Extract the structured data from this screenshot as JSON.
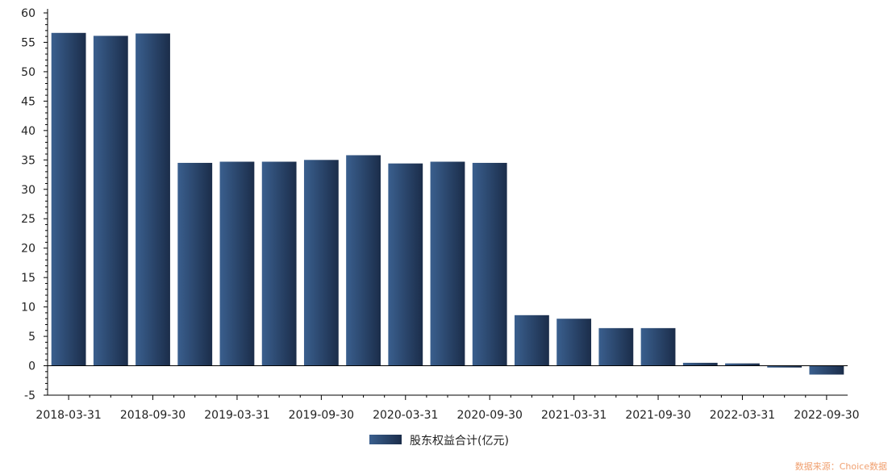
{
  "chart_data": {
    "type": "bar",
    "categories": [
      "2018-03-31",
      "2018-06-30",
      "2018-09-30",
      "2018-12-31",
      "2019-03-31",
      "2019-06-30",
      "2019-09-30",
      "2019-12-31",
      "2020-03-31",
      "2020-06-30",
      "2020-09-30",
      "2020-12-31",
      "2021-03-31",
      "2021-06-30",
      "2021-09-30",
      "2021-12-31",
      "2022-03-31",
      "2022-06-30",
      "2022-09-30"
    ],
    "x_tick_labels": [
      "2018-03-31",
      "2018-09-30",
      "2019-03-31",
      "2019-09-30",
      "2020-03-31",
      "2020-09-30",
      "2021-03-31",
      "2021-09-30",
      "2022-03-31",
      "2022-09-30"
    ],
    "series": [
      {
        "name": "股东权益合计(亿元)",
        "values": [
          56.6,
          56.1,
          56.5,
          34.5,
          34.7,
          34.7,
          35.0,
          35.8,
          34.4,
          34.7,
          34.5,
          8.6,
          8.0,
          6.4,
          6.4,
          0.5,
          0.4,
          -0.3,
          -1.5
        ]
      }
    ],
    "ylim": [
      -5,
      60
    ],
    "y_ticks": [
      -5,
      0,
      5,
      10,
      15,
      20,
      25,
      30,
      35,
      40,
      45,
      50,
      55,
      60
    ],
    "y_tick_labels": [
      "-5",
      "0",
      "5",
      "10",
      "15",
      "20",
      "25",
      "30",
      "35",
      "40",
      "45",
      "50",
      "55",
      "60"
    ],
    "xlabel": "",
    "ylabel": "",
    "grid": false,
    "legend_position": "bottom-center"
  },
  "colors": {
    "bar_light": "#3a5f8e",
    "bar_dark": "#1b2d4a",
    "axis": "#000000",
    "source_text": "#f0a070"
  },
  "source_text": "数据来源：Choice数据"
}
